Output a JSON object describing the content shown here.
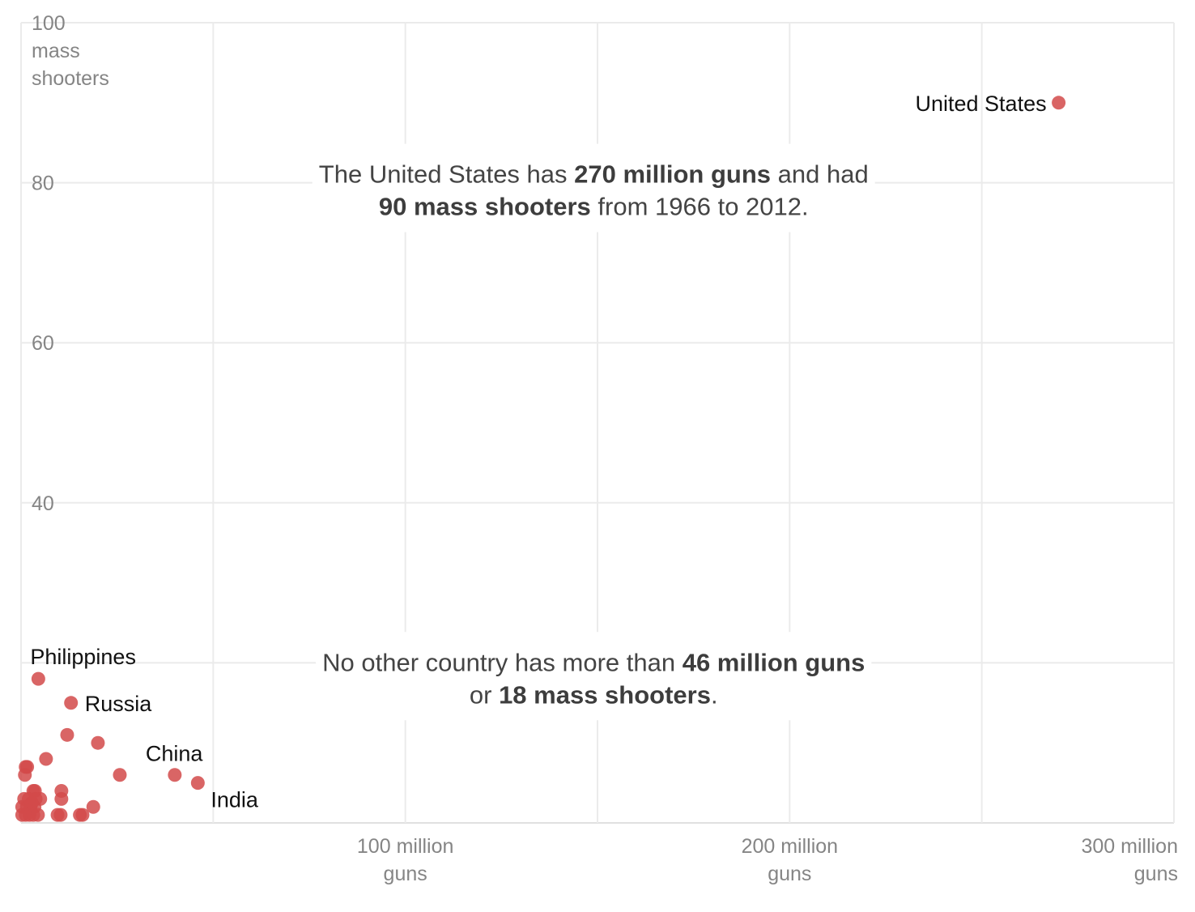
{
  "chart_data": {
    "type": "scatter",
    "title": "",
    "xlabel": "guns",
    "ylabel": "mass shooters",
    "xlim": [
      0,
      300
    ],
    "ylim": [
      0,
      100
    ],
    "x_unit": "million guns",
    "grid": true,
    "y_ticks": [
      {
        "value": 100,
        "label": "100",
        "sublabel": [
          "mass",
          "shooters"
        ]
      },
      {
        "value": 80,
        "label": "80"
      },
      {
        "value": 60,
        "label": "60"
      },
      {
        "value": 40,
        "label": "40"
      },
      {
        "value": 20,
        "label": ""
      },
      {
        "value": 0,
        "label": ""
      }
    ],
    "x_gridlines": [
      0,
      50,
      100,
      150,
      200,
      250,
      300
    ],
    "x_ticks": [
      {
        "value": 100,
        "line1": "100 million",
        "line2": "guns"
      },
      {
        "value": 200,
        "line1": "200 million",
        "line2": "guns"
      },
      {
        "value": 300,
        "line1": "300 million",
        "line2": "guns"
      }
    ],
    "color": "#d24a4a",
    "points": [
      {
        "x": 270,
        "y": 90,
        "label": "United States",
        "label_pos": "left"
      },
      {
        "x": 4.5,
        "y": 18,
        "label": "Philippines",
        "label_pos": "above"
      },
      {
        "x": 13,
        "y": 15,
        "label": "Russia",
        "label_pos": "right"
      },
      {
        "x": 40,
        "y": 6,
        "label": "China",
        "label_pos": "above"
      },
      {
        "x": 46,
        "y": 5,
        "label": "India",
        "label_pos": "below-right"
      },
      {
        "x": 12,
        "y": 11
      },
      {
        "x": 20,
        "y": 10
      },
      {
        "x": 25.7,
        "y": 6
      },
      {
        "x": 6.5,
        "y": 8
      },
      {
        "x": 1.2,
        "y": 7
      },
      {
        "x": 1.6,
        "y": 7
      },
      {
        "x": 1,
        "y": 6
      },
      {
        "x": 10.5,
        "y": 4
      },
      {
        "x": 10.5,
        "y": 3
      },
      {
        "x": 3.2,
        "y": 4
      },
      {
        "x": 3.6,
        "y": 4
      },
      {
        "x": 0.8,
        "y": 3
      },
      {
        "x": 3.8,
        "y": 3
      },
      {
        "x": 5,
        "y": 3
      },
      {
        "x": 18.8,
        "y": 2
      },
      {
        "x": 15.3,
        "y": 1
      },
      {
        "x": 16,
        "y": 1
      },
      {
        "x": 9.5,
        "y": 1
      },
      {
        "x": 10.3,
        "y": 1
      },
      {
        "x": 0.3,
        "y": 2
      },
      {
        "x": 1.5,
        "y": 2
      },
      {
        "x": 2.5,
        "y": 2
      },
      {
        "x": 3.5,
        "y": 2
      },
      {
        "x": 0.3,
        "y": 1
      },
      {
        "x": 1.2,
        "y": 1
      },
      {
        "x": 2.2,
        "y": 1
      },
      {
        "x": 3.2,
        "y": 1
      },
      {
        "x": 4.4,
        "y": 1
      },
      {
        "x": 2,
        "y": 3
      },
      {
        "x": 2.8,
        "y": 2.5
      }
    ],
    "annotations": [
      {
        "id": "us-note",
        "anchor": {
          "x": 149,
          "y": 80
        },
        "lines": [
          [
            {
              "text": "The United States has ",
              "bold": false
            },
            {
              "text": "270 million guns",
              "bold": true
            },
            {
              "text": " and had",
              "bold": false
            }
          ],
          [
            {
              "text": "90 mass shooters",
              "bold": true
            },
            {
              "text": " from 1966 to 2012.",
              "bold": false
            }
          ]
        ]
      },
      {
        "id": "others-note",
        "anchor": {
          "x": 149,
          "y": 19
        },
        "lines": [
          [
            {
              "text": "No other country has more than ",
              "bold": false
            },
            {
              "text": "46 million guns",
              "bold": true
            }
          ],
          [
            {
              "text": "or ",
              "bold": false
            },
            {
              "text": "18 mass shooters",
              "bold": true
            },
            {
              "text": ".",
              "bold": false
            }
          ]
        ]
      }
    ]
  }
}
